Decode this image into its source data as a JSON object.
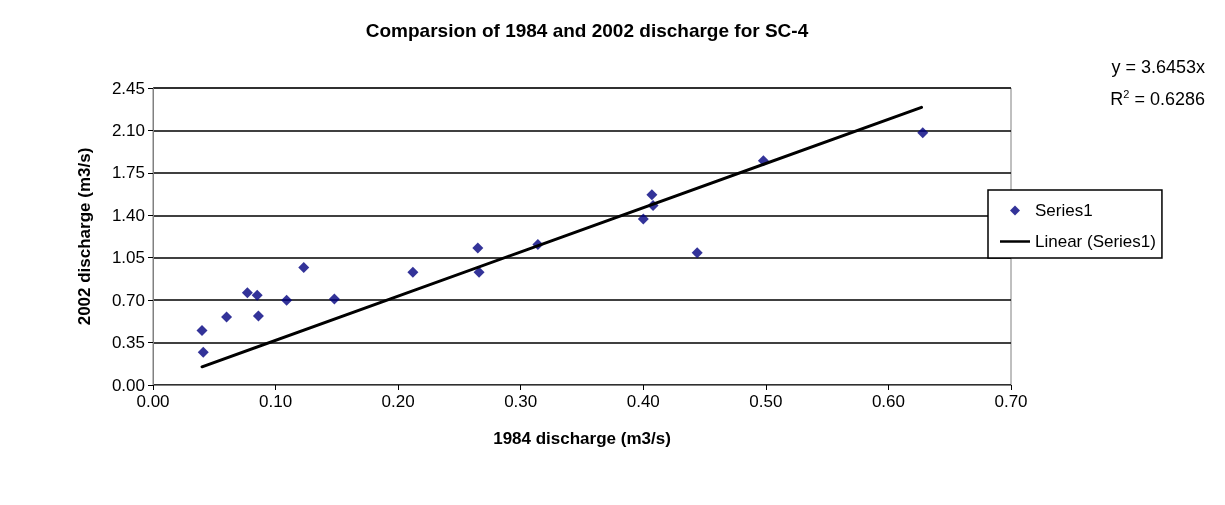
{
  "chart_data": {
    "type": "scatter",
    "title": "Comparsion of 1984 and 2002 discharge for SC-4",
    "xlabel": "1984 discharge (m3/s)",
    "ylabel": "2002 discharge (m3/s)",
    "annotations": [
      "y = 3.6453x",
      "R$^{2}$ = 0.6286"
    ],
    "series": [
      {
        "name": "Series1",
        "color": "#000080",
        "marker": "diamond",
        "x": [
          0.04,
          0.041,
          0.06,
          0.077,
          0.085,
          0.086,
          0.109,
          0.123,
          0.148,
          0.212,
          0.265,
          0.266,
          0.314,
          0.4,
          0.407,
          0.408,
          0.444,
          0.498,
          0.628
        ],
        "values": [
          0.45,
          0.27,
          0.56,
          0.76,
          0.74,
          0.57,
          0.7,
          0.97,
          0.71,
          0.93,
          1.13,
          0.93,
          1.16,
          1.37,
          1.57,
          1.48,
          1.09,
          1.85,
          2.08
        ]
      },
      {
        "name": "Linear (Series1)",
        "type": "line",
        "color": "#000000",
        "marker": "none",
        "line_style": "solid",
        "x": [
          0.04,
          0.627
        ],
        "values": [
          0.15,
          2.29
        ]
      }
    ],
    "xlim": [
      0,
      0.7
    ],
    "xticks": [
      {
        "value": 0,
        "label": "0.00"
      },
      {
        "value": 0.1,
        "label": "0.10"
      },
      {
        "value": 0.2,
        "label": "0.20"
      },
      {
        "value": 0.3,
        "label": "0.30"
      },
      {
        "value": 0.4,
        "label": "0.40"
      },
      {
        "value": 0.5,
        "label": "0.50"
      },
      {
        "value": 0.6,
        "label": "0.60"
      },
      {
        "value": 0.7,
        "label": "0.70"
      }
    ],
    "ylim": [
      0,
      2.45
    ],
    "yticks": [
      {
        "value": 0,
        "label": "0.00"
      },
      {
        "value": 0.35,
        "label": "0.35"
      },
      {
        "value": 0.7,
        "label": "0.70"
      },
      {
        "value": 1.05,
        "label": "1.05"
      },
      {
        "value": 1.4,
        "label": "1.40"
      },
      {
        "value": 1.75,
        "label": "1.75"
      },
      {
        "value": 2.1,
        "label": "2.10"
      },
      {
        "value": 2.45,
        "label": "2.45"
      }
    ],
    "grid": "y",
    "legend": "right"
  }
}
